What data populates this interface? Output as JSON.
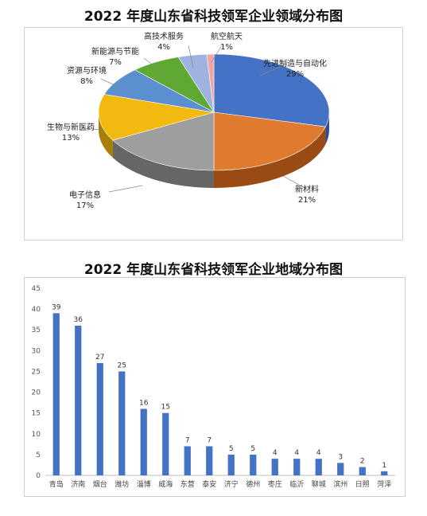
{
  "chart_data": [
    {
      "type": "pie",
      "title": "2022 年度山东省科技领军企业领域分布图",
      "slices": [
        {
          "label": "先进制造与自动化",
          "value": 29,
          "pct": "29%",
          "color": "#4472C4",
          "side": "#2D4F8A"
        },
        {
          "label": "新材料",
          "value": 21,
          "pct": "21%",
          "color": "#E07A2E",
          "side": "#9A4B14"
        },
        {
          "label": "电子信息",
          "value": 17,
          "pct": "17%",
          "color": "#9E9E9E",
          "side": "#666666"
        },
        {
          "label": "生物与新医药",
          "value": 13,
          "pct": "13%",
          "color": "#F2B90F",
          "side": "#A77F06"
        },
        {
          "label": "资源与环境",
          "value": 8,
          "pct": "8%",
          "color": "#5B8FCF",
          "side": "#3A6496"
        },
        {
          "label": "新能源与节能",
          "value": 7,
          "pct": "7%",
          "color": "#5FA834",
          "side": "#3E7420"
        },
        {
          "label": "高技术服务",
          "value": 4,
          "pct": "4%",
          "color": "#9FB3DE",
          "side": "#6F82AE"
        },
        {
          "label": "航空航天",
          "value": 1,
          "pct": "1%",
          "color": "#F4A6A6",
          "side": "#C07070"
        }
      ]
    },
    {
      "type": "bar",
      "title": "2022 年度山东省科技领军企业地域分布图",
      "categories": [
        "青岛",
        "济南",
        "烟台",
        "潍坊",
        "淄博",
        "威海",
        "东营",
        "泰安",
        "济宁",
        "德州",
        "枣庄",
        "临沂",
        "聊城",
        "滨州",
        "日照",
        "菏泽"
      ],
      "values": [
        39,
        36,
        27,
        25,
        16,
        15,
        7,
        7,
        5,
        5,
        4,
        4,
        4,
        3,
        2,
        1
      ],
      "ylim": [
        0,
        45
      ],
      "yticks": [
        0,
        5,
        10,
        15,
        20,
        25,
        30,
        35,
        40,
        45
      ],
      "color": "#4472C4",
      "grid": false
    }
  ]
}
